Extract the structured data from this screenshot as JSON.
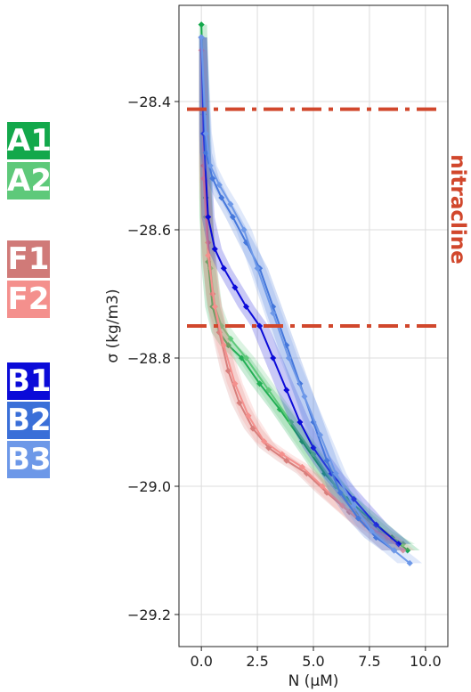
{
  "chart_data": {
    "type": "scatter",
    "xlabel": "N (μM)",
    "ylabel": "σ (kg/m3)",
    "xlim": [
      -1.0,
      11.0
    ],
    "ylim": [
      -28.25,
      -29.25
    ],
    "x_ticks": [
      "0.0",
      "2.5",
      "5.0",
      "7.5",
      "10.0"
    ],
    "y_ticks": [
      "−28.4",
      "−28.6",
      "−28.8",
      "−29.0",
      "−29.2"
    ],
    "x_tick_values": [
      0,
      2.5,
      5,
      7.5,
      10
    ],
    "y_tick_values": [
      -28.4,
      -28.6,
      -28.8,
      -29.0,
      -29.2
    ],
    "grid": true,
    "legend_placement": "left, outside plot",
    "nitracline": {
      "label": "nitracline",
      "color": "#d1472c",
      "top": -28.412,
      "bottom": -28.75
    },
    "series": [
      {
        "name": "A1",
        "color": "#13a84b",
        "x": [
          0.0,
          0.1,
          0.2,
          0.3,
          0.5,
          0.8,
          1.2,
          1.8,
          2.6,
          3.5,
          4.5,
          5.5,
          6.5,
          7.5,
          8.5,
          9.2
        ],
        "y": [
          -28.28,
          -28.42,
          -28.55,
          -28.65,
          -28.72,
          -28.76,
          -28.78,
          -28.8,
          -28.84,
          -28.88,
          -28.93,
          -28.98,
          -29.02,
          -29.05,
          -29.08,
          -29.1
        ]
      },
      {
        "name": "A2",
        "color": "#5ec97a",
        "x": [
          0.0,
          0.1,
          0.2,
          0.4,
          0.6,
          0.9,
          1.3,
          2.0,
          3.0,
          4.0,
          5.0,
          6.0,
          7.0,
          8.0,
          9.0
        ],
        "y": [
          -28.3,
          -28.45,
          -28.58,
          -28.66,
          -28.72,
          -28.75,
          -28.77,
          -28.8,
          -28.85,
          -28.9,
          -28.95,
          -29.0,
          -29.04,
          -29.07,
          -29.09
        ]
      },
      {
        "name": "F1",
        "color": "#d07a78",
        "x": [
          0.0,
          0.1,
          0.3,
          0.5,
          0.8,
          1.2,
          1.7,
          2.3,
          3.0,
          3.8,
          4.7,
          5.6,
          6.6,
          7.6,
          8.6
        ],
        "y": [
          -28.3,
          -28.5,
          -28.62,
          -28.7,
          -28.76,
          -28.82,
          -28.87,
          -28.91,
          -28.94,
          -28.96,
          -28.98,
          -29.01,
          -29.04,
          -29.07,
          -29.1
        ]
      },
      {
        "name": "F2",
        "color": "#f4908d",
        "x": [
          0.0,
          0.1,
          0.3,
          0.6,
          1.0,
          1.5,
          2.1,
          2.8,
          3.6,
          4.5,
          5.4,
          6.3,
          7.3,
          8.3,
          9.0
        ],
        "y": [
          -28.32,
          -28.52,
          -28.64,
          -28.72,
          -28.78,
          -28.84,
          -28.89,
          -28.93,
          -28.95,
          -28.97,
          -29.0,
          -29.03,
          -29.06,
          -29.08,
          -29.1
        ]
      },
      {
        "name": "B1",
        "color": "#0b0bd8",
        "x": [
          0.0,
          0.1,
          0.3,
          0.6,
          1.0,
          1.5,
          2.0,
          2.6,
          3.2,
          3.8,
          4.4,
          5.0,
          5.8,
          6.8,
          7.8,
          8.8
        ],
        "y": [
          -28.3,
          -28.45,
          -28.58,
          -28.63,
          -28.66,
          -28.69,
          -28.72,
          -28.75,
          -28.8,
          -28.85,
          -28.9,
          -28.94,
          -28.98,
          -29.02,
          -29.06,
          -29.09
        ]
      },
      {
        "name": "B2",
        "color": "#3a6fd8",
        "x": [
          0.0,
          0.2,
          0.5,
          0.9,
          1.4,
          2.0,
          2.6,
          3.2,
          3.8,
          4.4,
          5.0,
          5.6,
          6.2,
          7.0,
          7.8,
          8.6
        ],
        "y": [
          -28.3,
          -28.48,
          -28.52,
          -28.55,
          -28.58,
          -28.62,
          -28.66,
          -28.72,
          -28.78,
          -28.84,
          -28.9,
          -28.96,
          -29.01,
          -29.05,
          -29.08,
          -29.1
        ]
      },
      {
        "name": "B3",
        "color": "#6d98e8",
        "x": [
          0.0,
          0.2,
          0.4,
          0.8,
          1.3,
          1.9,
          2.5,
          3.2,
          3.9,
          4.6,
          5.3,
          6.0,
          6.8,
          7.6,
          8.6,
          9.3
        ],
        "y": [
          -28.3,
          -28.45,
          -28.5,
          -28.53,
          -28.56,
          -28.6,
          -28.66,
          -28.73,
          -28.8,
          -28.86,
          -28.92,
          -28.98,
          -29.03,
          -29.07,
          -29.1,
          -29.12
        ]
      }
    ]
  }
}
